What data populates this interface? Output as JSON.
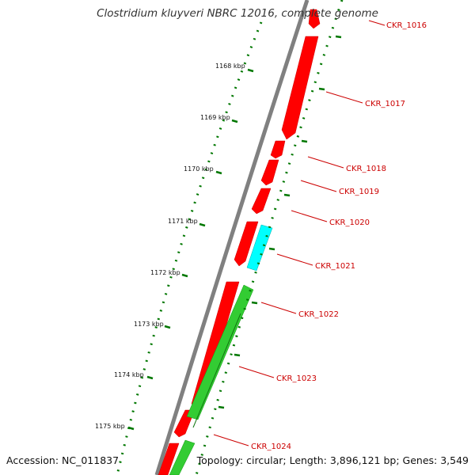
{
  "title": "Clostridium kluyveri NBRC 12016, complete genome",
  "accession": "Accession: NC_011837",
  "summary": "Topology: circular; Length: 3,896,121 bp; Genes: 3,549",
  "colors": {
    "backbone": "#808080",
    "forward_gene": "#ff0000",
    "reverse_cds": "#00ffff",
    "rna": "#33cc33",
    "scale": "#007700",
    "label": "#cc0000"
  },
  "scale_ticks": [
    "1168 kbp",
    "1169 kbp",
    "1170 kbp",
    "1171 kbp",
    "1172 kbp",
    "1173 kbp",
    "1174 kbp",
    "1175 kbp"
  ],
  "gene_labels": [
    "CKR_1016",
    "CKR_1017",
    "CKR_1018",
    "CKR_1019",
    "CKR_1020",
    "CKR_1021",
    "CKR_1022",
    "CKR_1023",
    "CKR_1024"
  ]
}
